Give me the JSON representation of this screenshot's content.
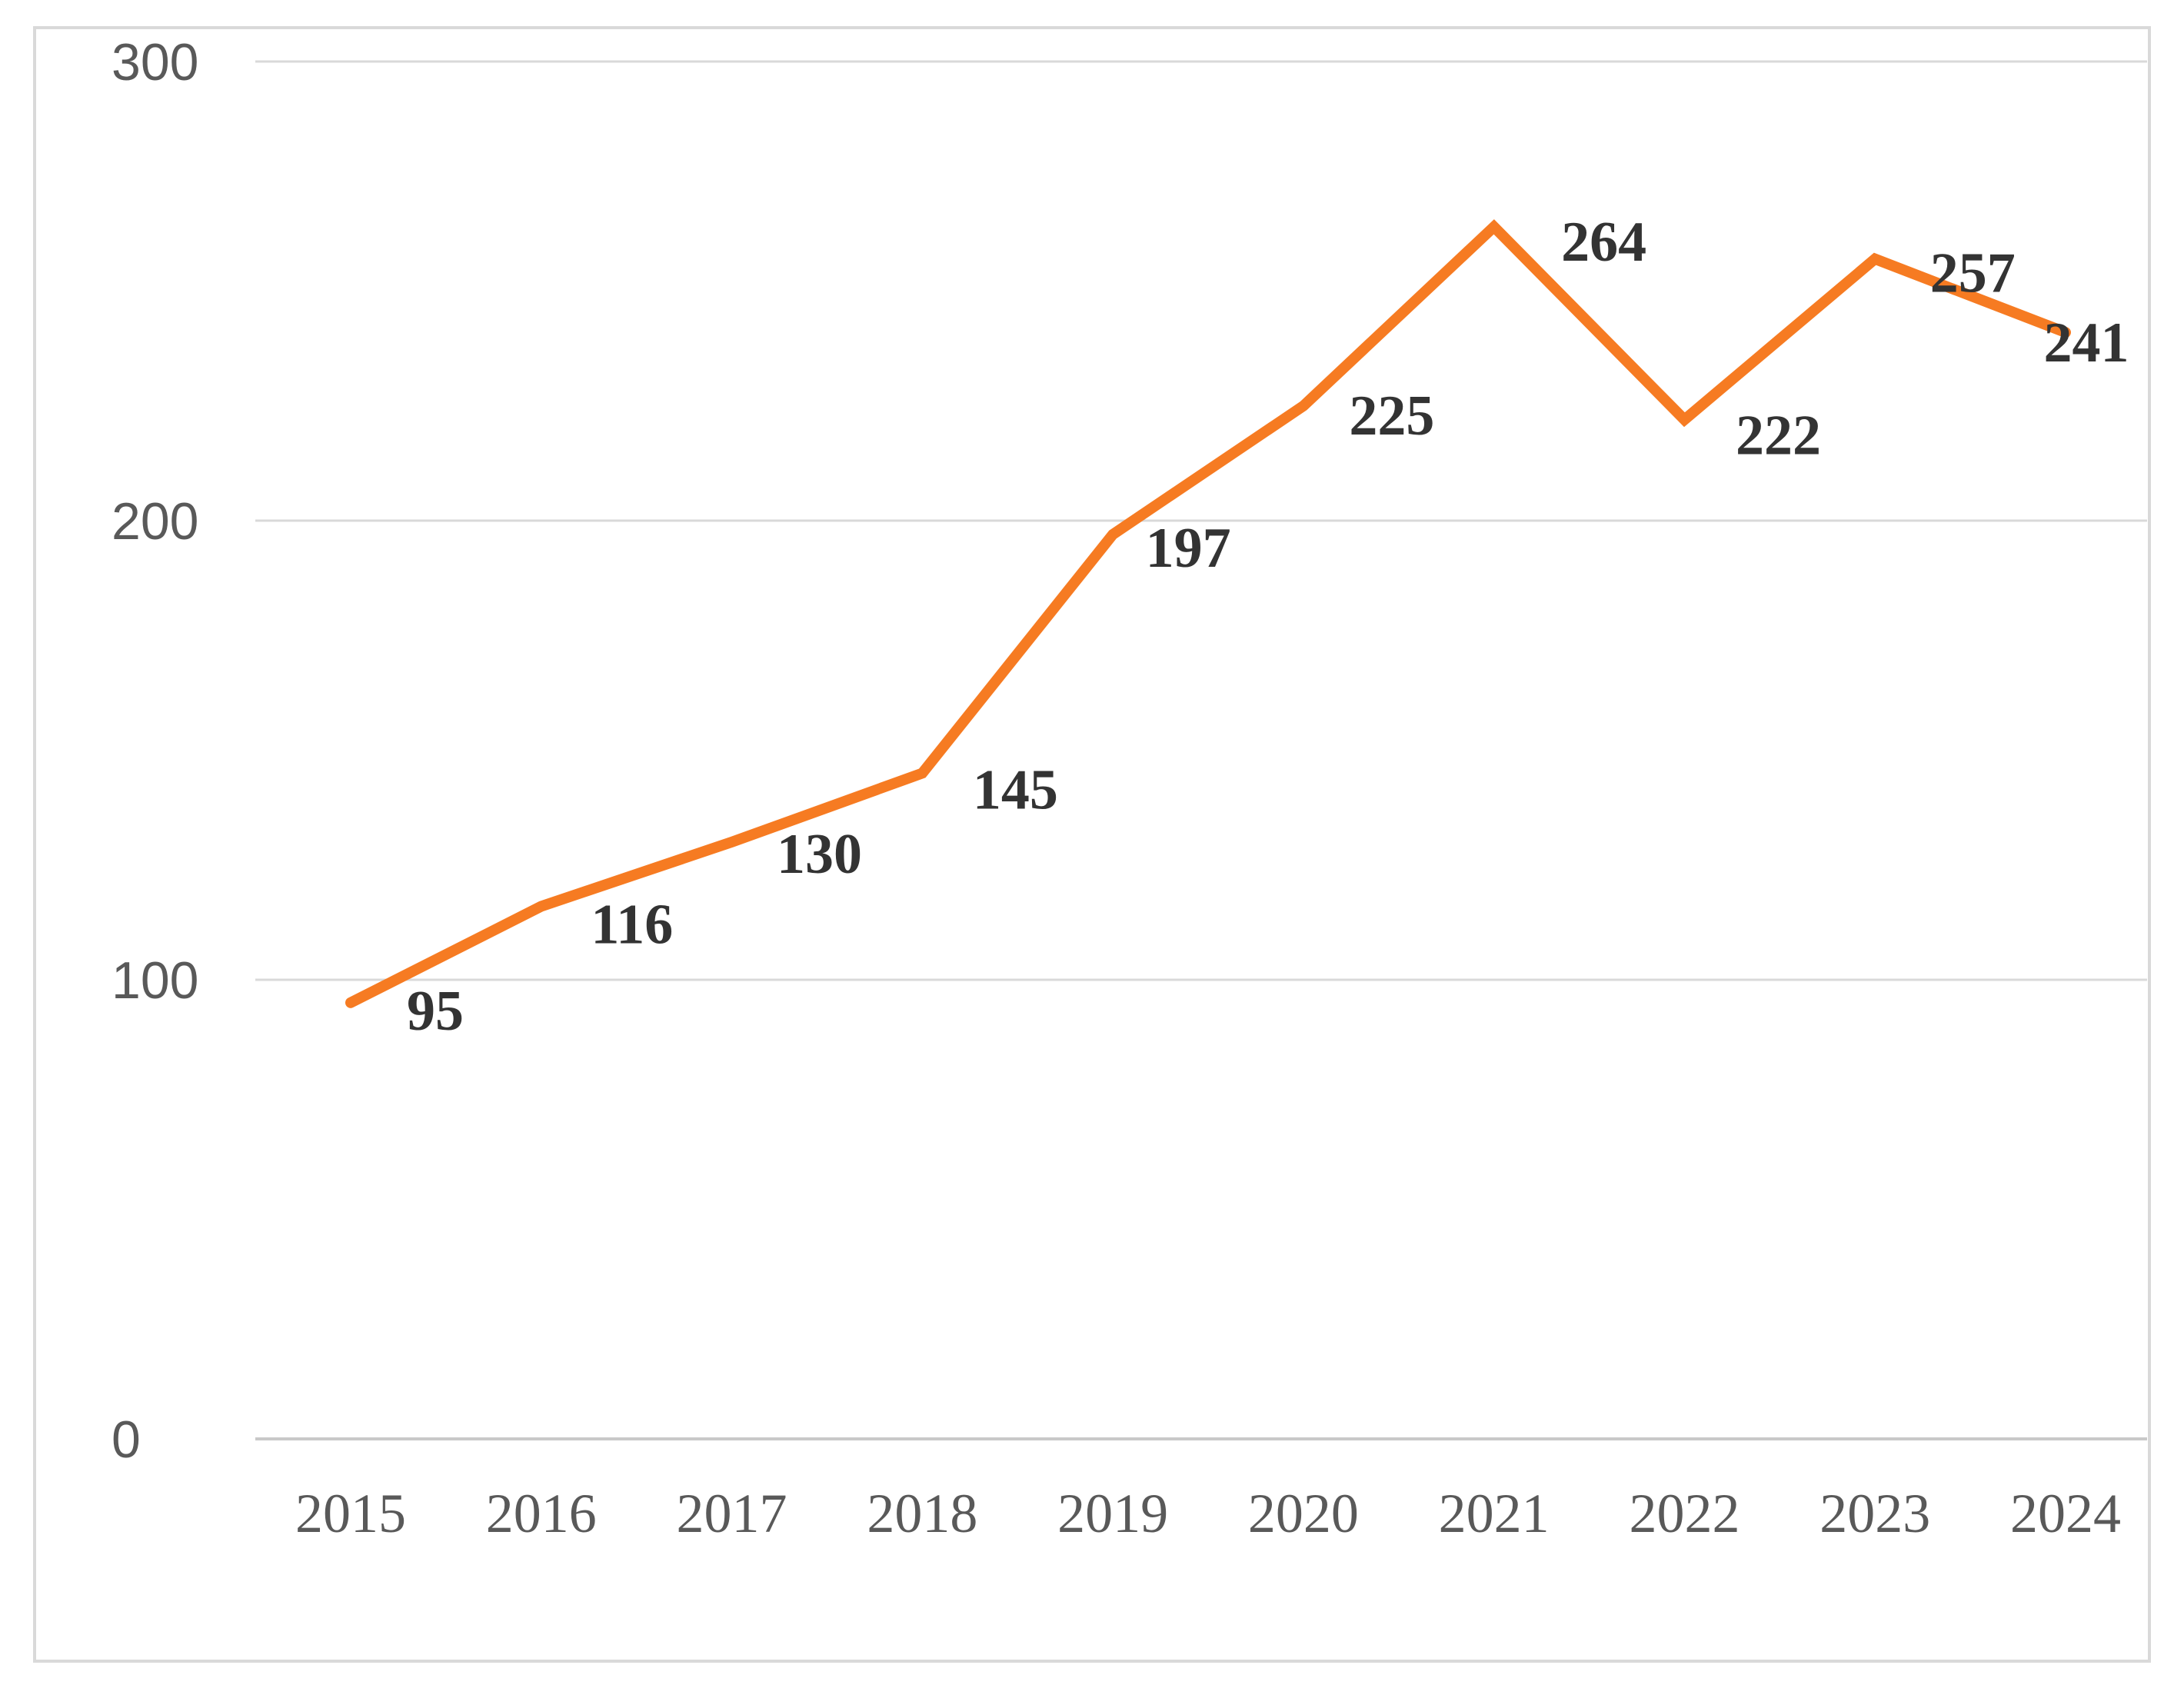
{
  "chart_data": {
    "type": "line",
    "categories": [
      "2015",
      "2016",
      "2017",
      "2018",
      "2019",
      "2020",
      "2021",
      "2022",
      "2023",
      "2024"
    ],
    "values": [
      95,
      116,
      130,
      145,
      197,
      225,
      264,
      222,
      257,
      241
    ],
    "data_labels": [
      "95",
      "116",
      "130",
      "145",
      "197",
      "225",
      "264",
      "222",
      "257",
      "241"
    ],
    "y_ticks": [
      0,
      100,
      200,
      300
    ],
    "y_tick_labels": [
      "0",
      "100",
      "200",
      "300"
    ],
    "ylim": [
      0,
      300
    ],
    "title": "",
    "xlabel": "",
    "ylabel": "",
    "grid": true,
    "legend": "none",
    "colors": {
      "series_line": "#F67B22",
      "gridline": "#D9D9D9",
      "axis_line": "#C9C9C9",
      "chart_border": "#D9D9D9",
      "axis_label": "#595959",
      "data_label": "#333333",
      "background": "#FFFFFF"
    }
  }
}
